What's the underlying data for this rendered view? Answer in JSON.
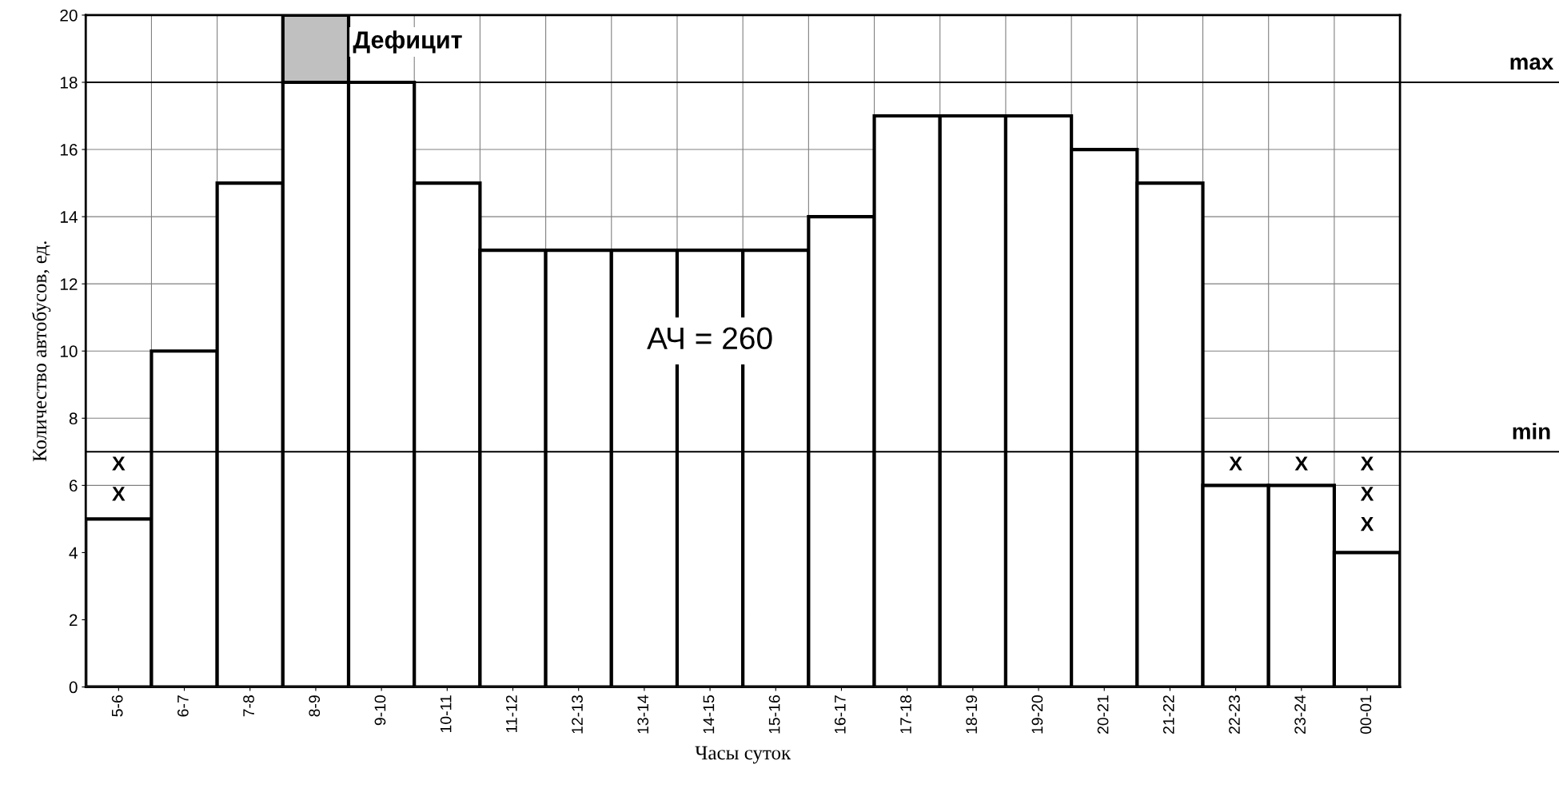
{
  "chart_data": {
    "type": "bar",
    "stacked": true,
    "xlabel": "Часы суток",
    "ylabel": "Количество автобусов, ед.",
    "categories": [
      "5-6",
      "6-7",
      "7-8",
      "8-9",
      "9-10",
      "10-11",
      "11-12",
      "12-13",
      "13-14",
      "14-15",
      "15-16",
      "16-17",
      "17-18",
      "18-19",
      "19-20",
      "20-21",
      "21-22",
      "22-23",
      "23-24",
      "00-01"
    ],
    "series": [
      {
        "color": "#ffffff",
        "values": [
          5,
          10,
          15,
          18,
          18,
          15,
          13,
          13,
          13,
          13,
          13,
          14,
          17,
          17,
          17,
          16,
          15,
          6,
          6,
          4
        ]
      },
      {
        "color": "#c0c0c0",
        "values": [
          null,
          null,
          null,
          2,
          null,
          null,
          null,
          null,
          null,
          null,
          null,
          null,
          null,
          null,
          null,
          null,
          null,
          null,
          null,
          null
        ]
      }
    ],
    "ylim": [
      0,
      20
    ],
    "yticks": [
      0,
      2,
      4,
      6,
      8,
      10,
      12,
      14,
      16,
      18,
      20
    ],
    "grid": true,
    "ref_lines": [
      {
        "axis": "y",
        "value": 18,
        "label": "max",
        "color": "#000000"
      },
      {
        "axis": "y",
        "value": 7,
        "label": "min",
        "color": "#000000"
      }
    ],
    "annotations": [
      "Дефицит",
      "АЧ = 260",
      "X",
      "X",
      "X",
      "X",
      "X",
      "X",
      "X"
    ]
  }
}
